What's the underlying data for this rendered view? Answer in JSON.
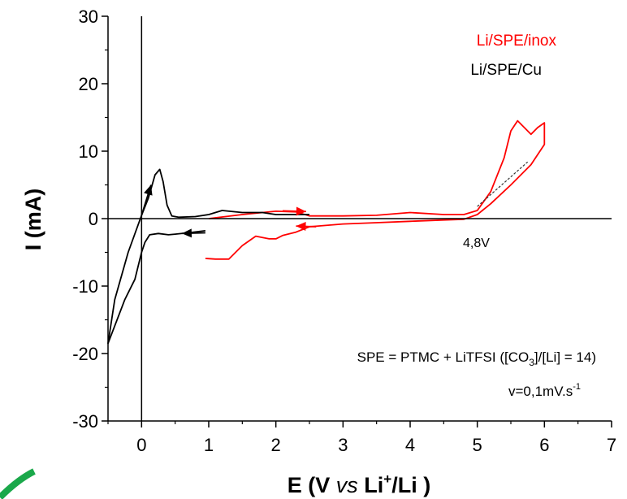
{
  "chart_data": {
    "type": "line",
    "xlabel_parts": [
      "E (V ",
      "vs",
      " Li",
      "+",
      "/Li )"
    ],
    "ylabel": "I (mA)",
    "xlim": [
      -0.5,
      7
    ],
    "ylim": [
      -30,
      30
    ],
    "xticks": [
      0,
      1,
      2,
      3,
      4,
      5,
      6,
      7
    ],
    "yticks": [
      -30,
      -20,
      -10,
      0,
      10,
      20,
      30
    ],
    "grid": false,
    "legend_position": "top-right",
    "colors": {
      "inox": "#ff0000",
      "cu": "#000000"
    },
    "series": [
      {
        "name": "Li/SPE/inox",
        "color": "#ff0000",
        "x": [
          1.0,
          1.5,
          2.0,
          2.3,
          2.5,
          3.0,
          3.5,
          4.0,
          4.5,
          4.8,
          5.0,
          5.2,
          5.4,
          5.5,
          5.6,
          5.7,
          5.8,
          5.9,
          6.0,
          6.0,
          5.8,
          5.5,
          5.2,
          5.0,
          4.8,
          4.5,
          4.0,
          3.5,
          3.0,
          2.5,
          2.3,
          2.1,
          2.0,
          1.9,
          1.7,
          1.5,
          1.3,
          1.1,
          0.95
        ],
        "y": [
          0.0,
          0.6,
          1.1,
          1.0,
          0.4,
          0.4,
          0.5,
          0.9,
          0.6,
          0.6,
          1.2,
          4.0,
          9.0,
          13.0,
          14.5,
          13.5,
          12.5,
          13.5,
          14.2,
          11.0,
          8.0,
          5.0,
          2.2,
          0.6,
          -0.1,
          -0.2,
          -0.4,
          -0.6,
          -0.8,
          -1.2,
          -2.0,
          -2.5,
          -3.0,
          -3.0,
          -2.6,
          -4.0,
          -6.0,
          -6.0,
          -5.9
        ]
      },
      {
        "name": "Li/SPE/Cu",
        "color": "#000000",
        "x": [
          0.95,
          0.7,
          0.5,
          0.4,
          0.25,
          0.12,
          0.05,
          0.0,
          -0.1,
          -0.25,
          -0.5,
          -0.5,
          -0.4,
          -0.2,
          0.0,
          0.1,
          0.2,
          0.27,
          0.32,
          0.38,
          0.45,
          0.55,
          0.8,
          1.0,
          1.2,
          1.5,
          1.8,
          2.0,
          2.2,
          2.5
        ],
        "y": [
          -1.8,
          -2.1,
          -2.3,
          -2.4,
          -2.2,
          -2.4,
          -3.5,
          -5.0,
          -9.0,
          -12.0,
          -18.5,
          -18.5,
          -12.0,
          -5.0,
          0.5,
          3.0,
          6.5,
          7.3,
          5.5,
          2.0,
          0.4,
          0.2,
          0.3,
          0.6,
          1.2,
          0.9,
          0.9,
          0.6,
          0.6,
          0.6
        ]
      }
    ],
    "tangent_line": {
      "x": [
        5.0,
        5.75
      ],
      "y": [
        1.8,
        8.4
      ],
      "color": "#333333"
    },
    "annotation_4_8": {
      "text": "4,8V",
      "x": 4.84,
      "y": 0
    },
    "arrows": [
      {
        "color": "#000000",
        "from": [
          0.95,
          -2.1
        ],
        "to": [
          0.6,
          -2.2
        ]
      },
      {
        "color": "#000000",
        "from": [
          0.0,
          0.5
        ],
        "to": [
          0.14,
          5.0
        ]
      },
      {
        "color": "#ff0000",
        "from": [
          2.1,
          1.15
        ],
        "to": [
          2.45,
          1.05
        ]
      },
      {
        "color": "#ff0000",
        "from": [
          2.6,
          -1.2
        ],
        "to": [
          2.3,
          -1.1
        ]
      }
    ],
    "annotation_spe": {
      "prefix": "SPE = PTMC + LiTFSI ([CO",
      "sub": "3",
      "suffix": "]/[Li] = 14)"
    },
    "annotation_v": {
      "text": "v=0,1mV.s",
      "sup": "-1"
    }
  }
}
